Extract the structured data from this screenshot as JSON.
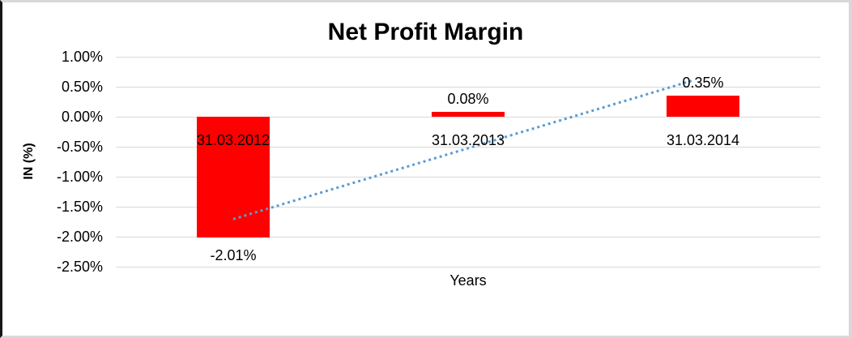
{
  "frame": {
    "background": "#ffffff",
    "outer_border_color": "#d8d8d8",
    "left_border_color": "#161616"
  },
  "chart_data": {
    "type": "bar",
    "title": "Net Profit Margin",
    "xlabel": "Years",
    "ylabel": "IN (%)",
    "categories": [
      "31.03.2012",
      "31.03.2013",
      "31.03.2014"
    ],
    "values": [
      -2.01,
      0.08,
      0.35
    ],
    "value_labels": [
      "-2.01%",
      "0.08%",
      "0.35%"
    ],
    "ylim": [
      -2.5,
      1.0
    ],
    "ytick_step": 0.5,
    "ytick_labels": [
      "1.00%",
      "0.50%",
      "0.00%",
      "-0.50%",
      "-1.00%",
      "-1.50%",
      "-2.00%",
      "-2.50%"
    ],
    "grid": true,
    "legend": "none",
    "bar_color": "#ff0000",
    "gridline_color": "#d9d9d9",
    "trendline": {
      "type": "linear",
      "style": "dotted",
      "color": "#5b9bd5"
    }
  }
}
